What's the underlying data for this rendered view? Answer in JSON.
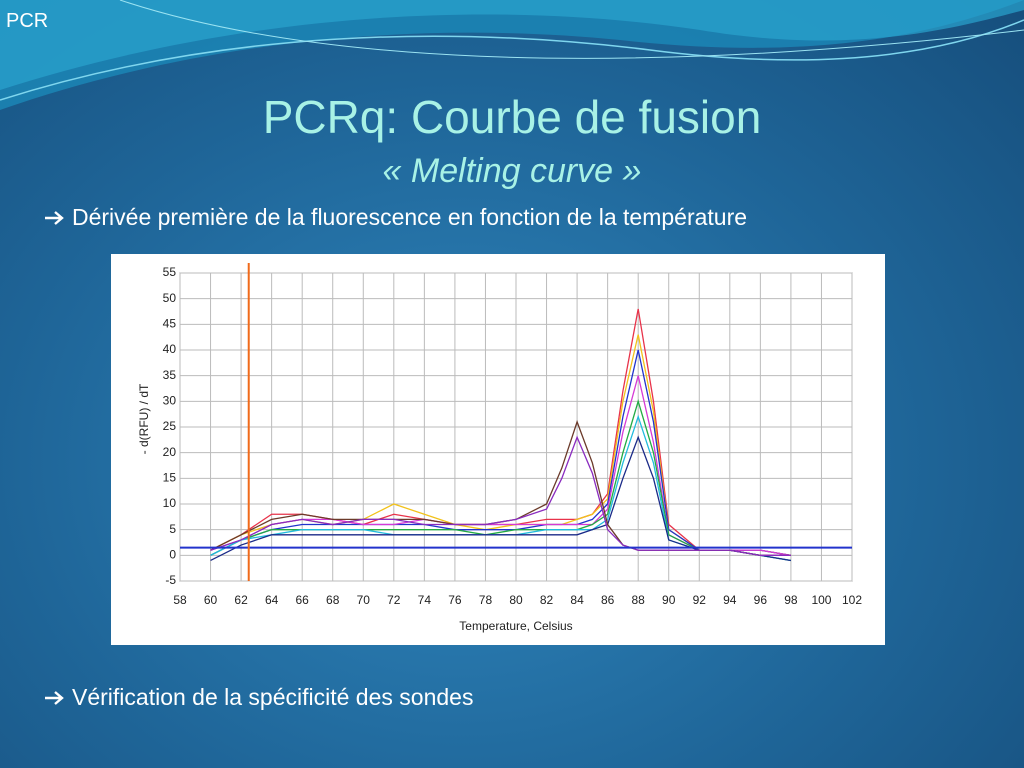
{
  "header": {
    "label": "PCR"
  },
  "title": "PCRq: Courbe de fusion",
  "subtitle": "« Melting curve »",
  "bullets": [
    "Dérivée première de la fluorescence en fonction de la température",
    "Vérification de la spécificité des sondes"
  ],
  "chart_data": {
    "type": "line",
    "y_label": "- d(RFU) / dT",
    "x_label": "Temperature, Celsius",
    "x": [
      60,
      62,
      64,
      66,
      68,
      70,
      72,
      74,
      76,
      78,
      80,
      82,
      83,
      84,
      85,
      86,
      87,
      88,
      89,
      90,
      92,
      94,
      96,
      98
    ],
    "series": [
      {
        "color": "#e8334a",
        "values": [
          1,
          4,
          8,
          8,
          7,
          6,
          8,
          7,
          6,
          6,
          6,
          7,
          7,
          7,
          8,
          12,
          32,
          48,
          30,
          6,
          1,
          1,
          1,
          0
        ]
      },
      {
        "color": "#f2c21b",
        "values": [
          1,
          4,
          6,
          7,
          6,
          7,
          10,
          8,
          6,
          5,
          6,
          6,
          6,
          7,
          8,
          11,
          30,
          43,
          28,
          5,
          1,
          1,
          1,
          0
        ]
      },
      {
        "color": "#2233cc",
        "values": [
          0,
          3,
          5,
          6,
          6,
          6,
          6,
          6,
          5,
          5,
          5,
          6,
          6,
          6,
          7,
          10,
          27,
          40,
          26,
          5,
          1,
          1,
          1,
          0
        ]
      },
      {
        "color": "#d63ad6",
        "values": [
          1,
          3,
          6,
          7,
          7,
          6,
          6,
          7,
          6,
          6,
          6,
          6,
          6,
          6,
          6,
          9,
          24,
          35,
          22,
          4,
          1,
          1,
          1,
          0
        ]
      },
      {
        "color": "#22aa44",
        "values": [
          0,
          3,
          5,
          5,
          5,
          5,
          5,
          5,
          5,
          4,
          5,
          5,
          5,
          5,
          6,
          8,
          20,
          30,
          20,
          4,
          1,
          1,
          0,
          -1
        ]
      },
      {
        "color": "#22bbdd",
        "values": [
          0,
          3,
          4,
          5,
          5,
          5,
          4,
          4,
          4,
          4,
          4,
          5,
          5,
          5,
          5,
          7,
          18,
          27,
          18,
          3,
          1,
          1,
          0,
          -1
        ]
      },
      {
        "color": "#1a2a88",
        "values": [
          -1,
          2,
          4,
          4,
          4,
          4,
          4,
          4,
          4,
          4,
          4,
          4,
          4,
          4,
          5,
          6,
          15,
          23,
          15,
          3,
          1,
          1,
          0,
          -1
        ]
      },
      {
        "color": "#6b3a2a",
        "values": [
          1,
          4,
          7,
          8,
          7,
          7,
          7,
          7,
          6,
          6,
          7,
          10,
          17,
          26,
          18,
          6,
          2,
          1,
          1,
          1,
          1,
          1,
          0,
          0
        ]
      },
      {
        "color": "#8a2bbf",
        "values": [
          1,
          3,
          6,
          7,
          6,
          7,
          7,
          6,
          6,
          6,
          7,
          9,
          15,
          23,
          16,
          5,
          2,
          1,
          1,
          1,
          1,
          1,
          0,
          0
        ]
      }
    ],
    "threshold_y": 1.5,
    "threshold_color": "#2233cc",
    "cursor_x": 62.5,
    "cursor_color": "#f06a1a",
    "xlim": [
      58,
      102
    ],
    "xticks": [
      58,
      60,
      62,
      64,
      66,
      68,
      70,
      72,
      74,
      76,
      78,
      80,
      82,
      84,
      86,
      88,
      90,
      92,
      94,
      96,
      98,
      100,
      102
    ],
    "ylim": [
      -5,
      55
    ],
    "yticks": [
      -5,
      0,
      5,
      10,
      15,
      20,
      25,
      30,
      35,
      40,
      45,
      50,
      55
    ],
    "grid": true
  }
}
